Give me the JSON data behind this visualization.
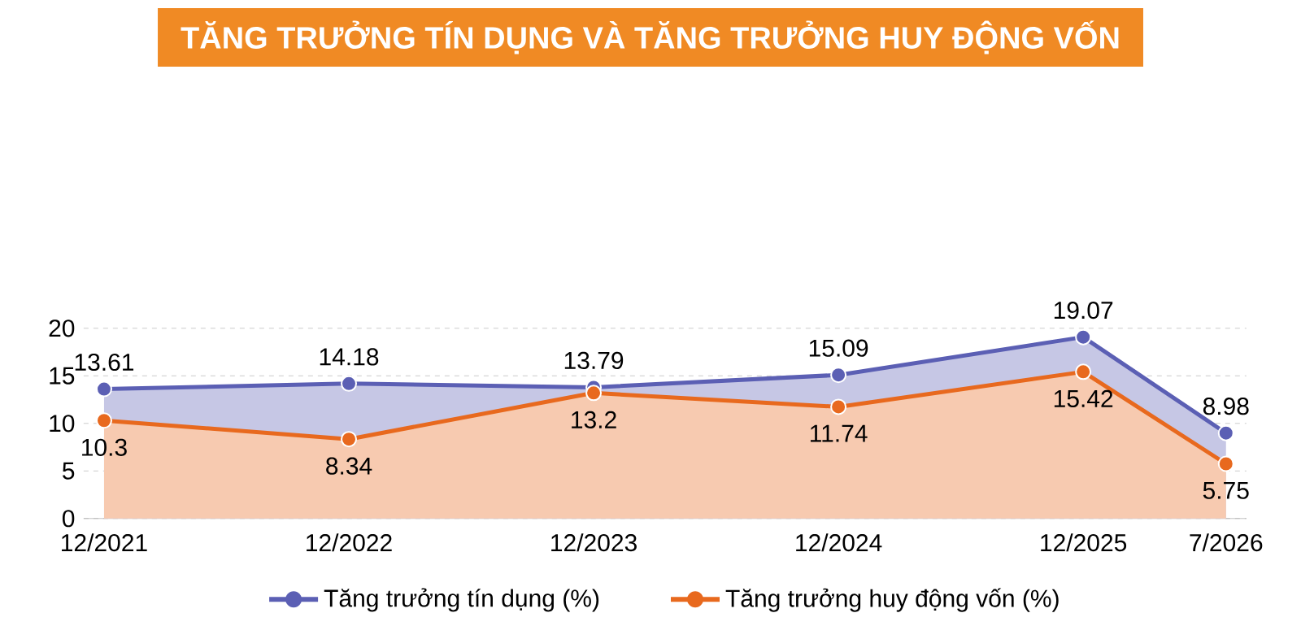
{
  "chart_data": {
    "type": "area",
    "title": "TĂNG TRƯỞNG TÍN DỤNG VÀ TĂNG TRƯỞNG HUY ĐỘNG VỐN",
    "x": [
      "2021-12",
      "2022-12",
      "2023-12",
      "2024-12",
      "2025-12",
      "2026-07"
    ],
    "xlim": [
      "2021-11",
      "2026-08"
    ],
    "xticks": [
      {
        "value": "2021-12",
        "label": "12/2021"
      },
      {
        "value": "2022-12",
        "label": "12/2022"
      },
      {
        "value": "2023-12",
        "label": "12/2023"
      },
      {
        "value": "2024-12",
        "label": "12/2024"
      },
      {
        "value": "2025-12",
        "label": "12/2025"
      },
      {
        "value": "2026-07",
        "label": "7/2026"
      }
    ],
    "ylim": [
      0,
      20
    ],
    "yticks": [
      0,
      5,
      10,
      15,
      20
    ],
    "series": [
      {
        "name": "Tăng trưởng tín dụng (%)",
        "color": "#5b5fb4",
        "values": [
          13.61,
          14.18,
          13.79,
          15.09,
          19.07,
          8.98
        ]
      },
      {
        "name": "Tăng trưởng huy động vốn (%)",
        "color": "#e8691e",
        "values": [
          10.3,
          8.34,
          13.2,
          11.74,
          15.42,
          5.75
        ]
      }
    ],
    "data_labels": true,
    "grid": "y",
    "legend": "bottom",
    "marker": "circle",
    "line_style": "solid"
  }
}
